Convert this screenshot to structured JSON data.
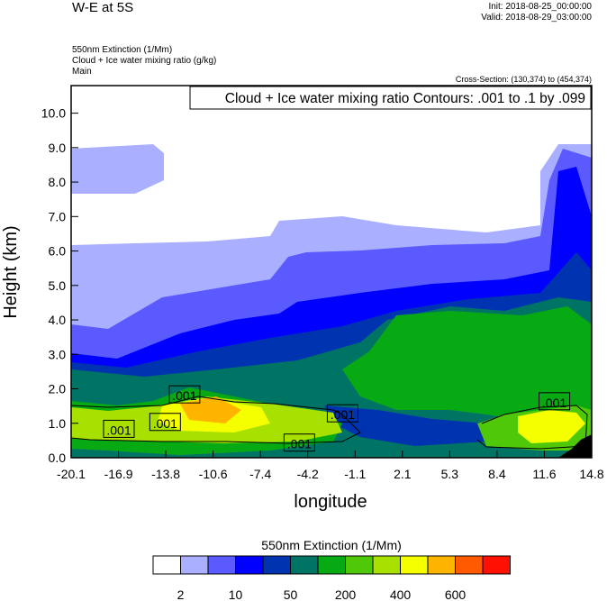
{
  "header": {
    "title": "W-E at 5S",
    "init": "Init: 2018-08-25_00:00:00",
    "valid": "Valid: 2018-08-29_03:00:00",
    "field1": "550nm Extinction   (1/Mm)",
    "field2": "Cloud + Ice water mixing ratio   (g/kg)",
    "field3": "Main",
    "cross_section": "Cross-Section: (130,374) to (454,374)"
  },
  "chart_data": {
    "type": "heatmap",
    "contour_info": "Cloud + Ice water mixing ratio Contours: .001 to .1 by .099",
    "xlabel": "longitude",
    "ylabel": "Height (km)",
    "xlim": [
      -20.1,
      14.8
    ],
    "ylim": [
      0.0,
      10.8
    ],
    "x_ticks": [
      "-20.1",
      "-16.9",
      "-13.8",
      "-10.6",
      "-7.4",
      "-4.2",
      "-1.1",
      "2.1",
      "5.3",
      "8.4",
      "11.6",
      "14.8"
    ],
    "y_ticks": [
      "0.0",
      "1.0",
      "2.0",
      "3.0",
      "4.0",
      "5.0",
      "6.0",
      "7.0",
      "8.0",
      "9.0",
      "10.0"
    ],
    "contour_labels": [
      ".001",
      ".001",
      ".001",
      ".001",
      ".001",
      ".001"
    ],
    "colorbar": {
      "title": "550nm Extinction  (1/Mm)",
      "colors": [
        "#ffffff",
        "#aab0ff",
        "#5a5aff",
        "#0000ff",
        "#0033b0",
        "#007464",
        "#08aa14",
        "#50c80a",
        "#a8e000",
        "#f5ff00",
        "#ffb400",
        "#ff5a00",
        "#ff1000"
      ],
      "labels": [
        "2",
        "10",
        "50",
        "200",
        "400",
        "600"
      ]
    }
  }
}
